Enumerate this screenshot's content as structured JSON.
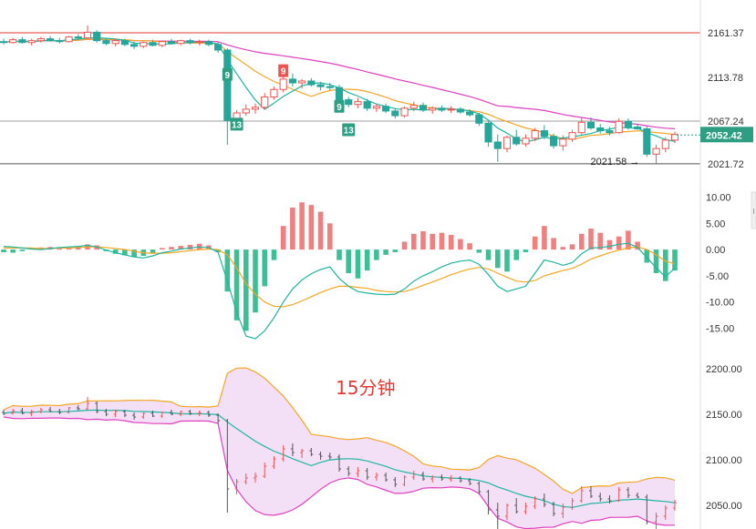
{
  "caption": "15分钟",
  "colors": {
    "up": "#ef5350",
    "down": "#26a69a",
    "hist_up": "#f08080",
    "hist_down": "#3cbf94",
    "ma_fast": "#f5a623",
    "ma_mid": "#1fb5a0",
    "ma_slow": "#e040c0",
    "price_tag": "#2e9e83",
    "boll_fill": "#f3e0f7",
    "caption": "#e53935"
  },
  "chart_data": [
    {
      "type": "candlestick",
      "panel": "price",
      "y_ticks": [
        "2161.37",
        "2113.78",
        "2067.24",
        "2021.72"
      ],
      "ylim": [
        2010,
        2175
      ],
      "price_tag": "2052.42",
      "low_label": "2021.58",
      "hlines": [
        {
          "value": 2161.37,
          "color": "#e53935"
        },
        {
          "value": 2067.24,
          "color": "#9e9e9e"
        },
        {
          "value": 2021.72,
          "color": "#555555"
        }
      ],
      "signals": [
        {
          "text": "9",
          "bar": 24,
          "anchor": 2117,
          "color": "#2e9e83"
        },
        {
          "text": "13",
          "bar": 25,
          "anchor": 2064,
          "color": "#2e9e83"
        },
        {
          "text": "9",
          "bar": 30,
          "anchor": 2121,
          "color": "#ef5350"
        },
        {
          "text": "9",
          "bar": 36,
          "anchor": 2083,
          "color": "#2e9e83"
        },
        {
          "text": "13",
          "bar": 37,
          "anchor": 2058,
          "color": "#2e9e83"
        }
      ],
      "ohlc": [
        [
          2152,
          2155,
          2149,
          2151
        ],
        [
          2151,
          2156,
          2150,
          2154
        ],
        [
          2154,
          2157,
          2150,
          2151
        ],
        [
          2151,
          2155,
          2148,
          2153
        ],
        [
          2153,
          2157,
          2151,
          2155
        ],
        [
          2155,
          2158,
          2152,
          2153
        ],
        [
          2153,
          2156,
          2150,
          2152
        ],
        [
          2152,
          2158,
          2151,
          2157
        ],
        [
          2157,
          2160,
          2154,
          2156
        ],
        [
          2156,
          2169,
          2155,
          2162
        ],
        [
          2162,
          2164,
          2151,
          2153
        ],
        [
          2153,
          2156,
          2148,
          2150
        ],
        [
          2150,
          2155,
          2147,
          2153
        ],
        [
          2153,
          2155,
          2147,
          2149
        ],
        [
          2149,
          2152,
          2144,
          2147
        ],
        [
          2147,
          2152,
          2145,
          2151
        ],
        [
          2151,
          2154,
          2147,
          2148
        ],
        [
          2148,
          2153,
          2146,
          2152
        ],
        [
          2152,
          2155,
          2149,
          2150
        ],
        [
          2150,
          2154,
          2148,
          2153
        ],
        [
          2153,
          2155,
          2149,
          2151
        ],
        [
          2151,
          2154,
          2148,
          2152
        ],
        [
          2152,
          2154,
          2147,
          2149
        ],
        [
          2149,
          2151,
          2140,
          2143
        ],
        [
          2143,
          2145,
          2042,
          2068
        ],
        [
          2068,
          2079,
          2062,
          2076
        ],
        [
          2076,
          2085,
          2073,
          2080
        ],
        [
          2080,
          2086,
          2075,
          2082
        ],
        [
          2082,
          2097,
          2080,
          2093
        ],
        [
          2093,
          2104,
          2090,
          2101
        ],
        [
          2101,
          2116,
          2098,
          2112
        ],
        [
          2112,
          2118,
          2104,
          2108
        ],
        [
          2108,
          2112,
          2102,
          2110
        ],
        [
          2110,
          2113,
          2104,
          2106
        ],
        [
          2106,
          2109,
          2100,
          2104
        ],
        [
          2104,
          2108,
          2100,
          2103
        ],
        [
          2103,
          2106,
          2087,
          2090
        ],
        [
          2090,
          2093,
          2082,
          2085
        ],
        [
          2085,
          2092,
          2081,
          2088
        ],
        [
          2088,
          2091,
          2078,
          2081
        ],
        [
          2081,
          2086,
          2077,
          2083
        ],
        [
          2083,
          2086,
          2076,
          2078
        ],
        [
          2078,
          2081,
          2070,
          2073
        ],
        [
          2073,
          2083,
          2071,
          2081
        ],
        [
          2081,
          2088,
          2078,
          2084
        ],
        [
          2084,
          2087,
          2077,
          2079
        ],
        [
          2079,
          2083,
          2075,
          2081
        ],
        [
          2081,
          2084,
          2077,
          2079
        ],
        [
          2079,
          2083,
          2076,
          2080
        ],
        [
          2080,
          2082,
          2075,
          2077
        ],
        [
          2077,
          2080,
          2072,
          2074
        ],
        [
          2074,
          2076,
          2062,
          2065
        ],
        [
          2065,
          2067,
          2040,
          2045
        ],
        [
          2045,
          2053,
          2024,
          2038
        ],
        [
          2038,
          2052,
          2034,
          2050
        ],
        [
          2050,
          2058,
          2041,
          2043
        ],
        [
          2043,
          2053,
          2040,
          2049
        ],
        [
          2049,
          2060,
          2046,
          2057
        ],
        [
          2057,
          2063,
          2048,
          2051
        ],
        [
          2051,
          2054,
          2038,
          2041
        ],
        [
          2041,
          2052,
          2036,
          2048
        ],
        [
          2048,
          2058,
          2045,
          2055
        ],
        [
          2055,
          2071,
          2053,
          2066
        ],
        [
          2066,
          2071,
          2058,
          2060
        ],
        [
          2060,
          2064,
          2054,
          2057
        ],
        [
          2057,
          2061,
          2052,
          2055
        ],
        [
          2055,
          2070,
          2054,
          2067
        ],
        [
          2067,
          2070,
          2058,
          2061
        ],
        [
          2061,
          2064,
          2058,
          2059
        ],
        [
          2059,
          2062,
          2029,
          2032
        ],
        [
          2032,
          2042,
          2022,
          2038
        ],
        [
          2038,
          2050,
          2034,
          2047
        ],
        [
          2047,
          2056,
          2044,
          2053
        ]
      ]
    },
    {
      "type": "macd",
      "panel": "macd",
      "y_ticks": [
        "10.00",
        "5.00",
        "0.00",
        "-5.00",
        "-10.00",
        "-15.00"
      ],
      "ylim": [
        -17,
        12
      ],
      "histogram": [
        -0.5,
        -0.6,
        -0.3,
        0.2,
        0.4,
        0.5,
        0.3,
        0.4,
        0.6,
        1.0,
        0.8,
        -0.3,
        -0.8,
        -1.1,
        -1.4,
        -1.2,
        -0.6,
        0.3,
        0.5,
        0.7,
        0.9,
        1.1,
        0.8,
        -0.5,
        -8.0,
        -13.5,
        -15.5,
        -12.0,
        -7.0,
        -2.0,
        4.5,
        8.0,
        9.0,
        8.5,
        7.2,
        5.0,
        -2.0,
        -4.5,
        -5.5,
        -4.0,
        -2.0,
        -1.0,
        -0.5,
        1.5,
        3.0,
        3.5,
        3.0,
        3.2,
        2.8,
        2.0,
        1.2,
        -0.6,
        -2.0,
        -3.5,
        -4.2,
        -2.0,
        -0.5,
        2.5,
        4.5,
        2.2,
        0.5,
        1.0,
        3.0,
        4.0,
        3.2,
        1.8,
        2.5,
        3.6,
        1.5,
        -2.5,
        -4.5,
        -6.0,
        -4.0
      ],
      "dif": [
        0.6,
        0.5,
        0.3,
        0.1,
        0.0,
        0.2,
        0.4,
        0.5,
        0.6,
        0.8,
        0.5,
        -0.1,
        -0.6,
        -1.0,
        -1.4,
        -1.6,
        -1.2,
        -0.6,
        -0.3,
        0.1,
        0.3,
        0.5,
        0.4,
        -0.5,
        -6.0,
        -12.0,
        -16.5,
        -17.0,
        -15.5,
        -13.0,
        -10.0,
        -7.5,
        -5.8,
        -4.6,
        -3.8,
        -3.3,
        -5.5,
        -7.0,
        -8.0,
        -8.3,
        -8.5,
        -8.6,
        -8.5,
        -7.5,
        -6.0,
        -5.0,
        -4.2,
        -3.3,
        -2.6,
        -2.2,
        -2.0,
        -2.8,
        -4.8,
        -7.0,
        -8.0,
        -7.5,
        -7.0,
        -4.5,
        -2.0,
        -2.4,
        -3.0,
        -2.5,
        -0.8,
        0.3,
        0.4,
        0.6,
        1.0,
        1.2,
        0.4,
        -1.5,
        -3.5,
        -5.2,
        -3.5
      ],
      "dea": [
        0.3,
        0.3,
        0.3,
        0.3,
        0.2,
        0.2,
        0.3,
        0.3,
        0.4,
        0.5,
        0.5,
        0.4,
        0.2,
        0.0,
        -0.3,
        -0.6,
        -0.7,
        -0.7,
        -0.6,
        -0.4,
        -0.2,
        0.0,
        0.1,
        0.0,
        -1.0,
        -3.5,
        -6.5,
        -8.5,
        -10.0,
        -10.8,
        -10.9,
        -10.5,
        -9.8,
        -9.0,
        -8.2,
        -7.5,
        -7.0,
        -7.0,
        -7.2,
        -7.4,
        -7.8,
        -8.0,
        -8.1,
        -8.0,
        -7.5,
        -6.8,
        -6.2,
        -5.5,
        -4.8,
        -4.2,
        -3.7,
        -3.4,
        -3.7,
        -4.5,
        -5.3,
        -6.0,
        -6.2,
        -5.9,
        -5.0,
        -4.5,
        -4.0,
        -3.6,
        -2.8,
        -1.8,
        -1.2,
        -0.6,
        -0.1,
        0.3,
        0.5,
        0.0,
        -1.0,
        -2.2,
        -2.7
      ]
    },
    {
      "type": "bollinger",
      "panel": "boll",
      "y_ticks": [
        "2200.00",
        "2150.00",
        "2100.00",
        "2050.00"
      ],
      "ylim": [
        2030,
        2210
      ]
    }
  ]
}
